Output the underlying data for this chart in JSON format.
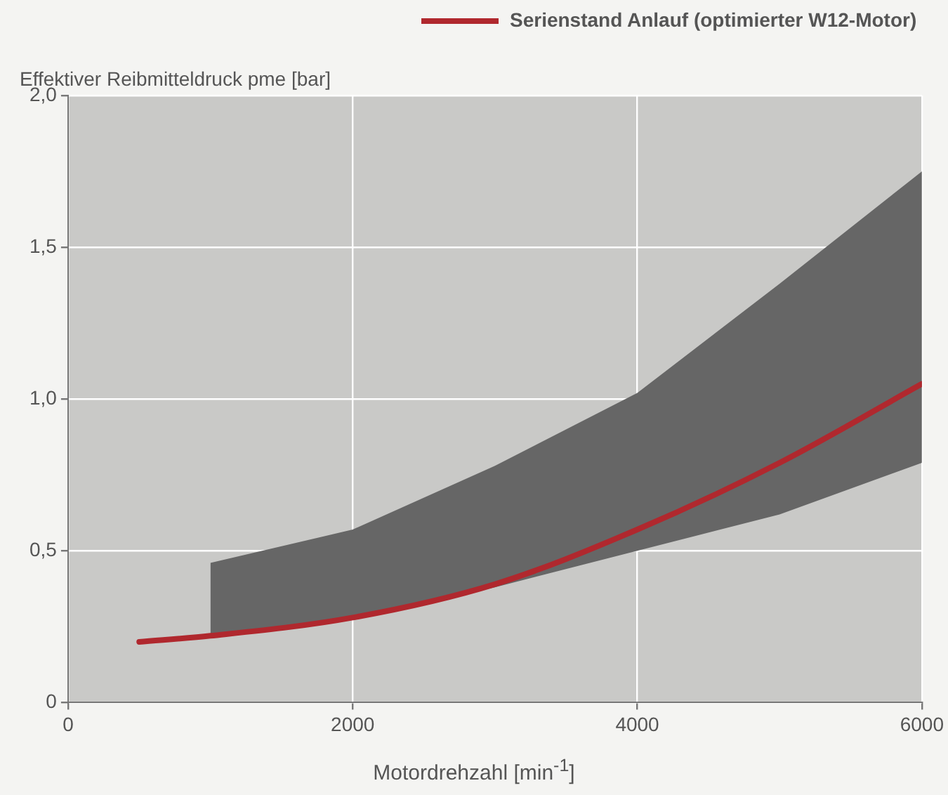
{
  "chart_data": {
    "type": "line",
    "ylabel": "Effektiver Reibmitteldruck pme [bar]",
    "xlabel": "Motordrehzahl [min$^{-1}$]",
    "xlim": [
      0,
      6000
    ],
    "xticks": [
      0,
      2000,
      4000,
      6000
    ],
    "ylim": [
      0,
      2
    ],
    "yticks": [
      0,
      {
        "value": 0.5,
        "label": "0,5"
      },
      {
        "value": 1,
        "label": "1,0"
      },
      {
        "value": 1.5,
        "label": "1,5"
      },
      {
        "value": 2,
        "label": "2,0"
      }
    ],
    "grid": true,
    "legend": "top right",
    "marker": "none",
    "line_style": "solid",
    "series": [
      {
        "name": "Serienstand Anlauf (optimierter W12-Motor)",
        "color": "#b0282e",
        "x": [
          500,
          1000,
          2000,
          3000,
          4000,
          5000,
          6000
        ],
        "values": [
          0.2,
          0.22,
          0.28,
          0.39,
          0.57,
          0.79,
          1.05
        ],
        "lower": [
          null,
          0.22,
          0.28,
          0.38,
          0.5,
          0.62,
          0.79
        ],
        "upper": [
          null,
          0.46,
          0.57,
          0.78,
          1.02,
          1.38,
          1.75
        ]
      }
    ]
  }
}
